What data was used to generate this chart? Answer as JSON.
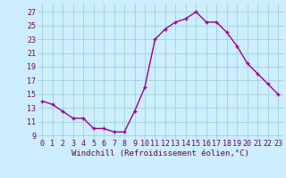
{
  "x": [
    0,
    1,
    2,
    3,
    4,
    5,
    6,
    7,
    8,
    9,
    10,
    11,
    12,
    13,
    14,
    15,
    16,
    17,
    18,
    19,
    20,
    21,
    22,
    23
  ],
  "y": [
    14.0,
    13.5,
    12.5,
    11.5,
    11.5,
    10.0,
    10.0,
    9.5,
    9.5,
    12.5,
    16.0,
    23.0,
    24.5,
    25.5,
    26.0,
    27.0,
    25.5,
    25.5,
    24.0,
    22.0,
    19.5,
    18.0,
    16.5,
    15.0
  ],
  "line_color": "#990099",
  "marker": "+",
  "marker_size": 3.5,
  "line_width": 1.0,
  "bg_color": "#cceeff",
  "grid_color": "#99cccc",
  "xlabel": "Windchill (Refroidissement éolien,°C)",
  "xlabel_color": "#660066",
  "xlabel_fontsize": 6.5,
  "ytick_vals": [
    9,
    11,
    13,
    15,
    17,
    19,
    21,
    23,
    25,
    27
  ],
  "ylim": [
    8.5,
    28.2
  ],
  "xlim": [
    -0.5,
    23.5
  ],
  "tick_color": "#660066",
  "tick_fontsize": 6.0
}
